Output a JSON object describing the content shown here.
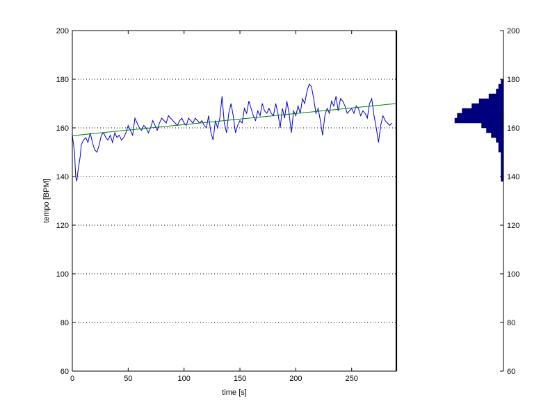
{
  "chart_data": [
    {
      "type": "line",
      "xlabel": "time [s]",
      "ylabel": "tempo [BPM]",
      "xlim": [
        0,
        290
      ],
      "ylim": [
        60,
        200
      ],
      "x_ticks": [
        0,
        50,
        100,
        150,
        200,
        250
      ],
      "y_ticks": [
        60,
        80,
        100,
        120,
        140,
        160,
        180,
        200
      ],
      "grid": "horizontal dotted",
      "series": [
        {
          "color": "#0000cc",
          "x": [
            0,
            2,
            3,
            4,
            5,
            6,
            7,
            8,
            10,
            12,
            14,
            16,
            18,
            20,
            22,
            24,
            26,
            28,
            30,
            32,
            34,
            36,
            38,
            40,
            42,
            44,
            46,
            48,
            50,
            52,
            54,
            56,
            58,
            60,
            62,
            64,
            66,
            68,
            70,
            72,
            74,
            76,
            78,
            80,
            82,
            84,
            86,
            88,
            90,
            92,
            94,
            96,
            98,
            100,
            102,
            104,
            106,
            108,
            110,
            112,
            114,
            116,
            118,
            120,
            122,
            124,
            126,
            128,
            130,
            132,
            134,
            136,
            138,
            140,
            142,
            144,
            146,
            148,
            150,
            152,
            154,
            156,
            158,
            160,
            162,
            164,
            166,
            168,
            170,
            172,
            174,
            176,
            178,
            180,
            182,
            184,
            186,
            188,
            190,
            192,
            194,
            196,
            198,
            200,
            202,
            204,
            206,
            208,
            210,
            212,
            214,
            216,
            218,
            220,
            222,
            224,
            226,
            228,
            230,
            232,
            234,
            236,
            238,
            240,
            242,
            244,
            246,
            248,
            250,
            252,
            254,
            256,
            258,
            260,
            262,
            264,
            266,
            268,
            270,
            272,
            274,
            276,
            278,
            280,
            282,
            284,
            286
          ],
          "y": [
            157,
            150,
            140,
            138,
            142,
            145,
            148,
            153,
            155,
            156,
            154,
            158,
            154,
            151,
            150,
            153,
            157,
            158,
            156,
            155,
            157,
            154,
            158,
            156,
            157,
            155,
            156,
            158,
            161,
            159,
            157,
            164,
            162,
            160,
            159,
            161,
            160,
            158,
            160,
            163,
            161,
            159,
            162,
            164,
            163,
            162,
            165,
            164,
            163,
            162,
            161,
            163,
            164,
            162,
            161,
            164,
            163,
            162,
            164,
            163,
            162,
            163,
            161,
            160,
            165,
            158,
            155,
            163,
            160,
            164,
            173,
            162,
            158,
            166,
            170,
            165,
            158,
            161,
            163,
            162,
            168,
            166,
            171,
            168,
            165,
            163,
            167,
            165,
            170,
            167,
            166,
            168,
            166,
            165,
            170,
            166,
            160,
            168,
            164,
            171,
            166,
            158,
            167,
            165,
            169,
            166,
            172,
            170,
            175,
            178,
            177,
            172,
            166,
            168,
            163,
            157,
            165,
            168,
            166,
            171,
            169,
            173,
            167,
            172,
            171,
            169,
            166,
            167,
            168,
            166,
            169,
            168,
            165,
            167,
            166,
            164,
            170,
            172,
            165,
            160,
            154,
            161,
            165,
            163,
            162,
            161,
            162
          ]
        },
        {
          "color": "#008000",
          "x": [
            0,
            290
          ],
          "y": [
            156.8,
            170
          ]
        }
      ]
    },
    {
      "type": "bar",
      "orientation": "horizontal",
      "color": "#00007f",
      "ylim": [
        60,
        200
      ],
      "y_ticks": [
        60,
        80,
        100,
        120,
        140,
        160,
        180,
        200
      ],
      "bins": [
        139,
        141,
        143,
        145,
        147,
        149,
        151,
        153,
        155,
        157,
        159,
        161,
        163,
        165,
        167,
        169,
        171,
        173,
        175,
        177,
        179
      ],
      "counts": [
        1,
        1,
        1,
        1,
        1,
        1,
        2,
        2,
        3,
        5,
        7,
        9,
        20,
        19,
        17,
        13,
        10,
        6,
        3,
        2,
        1
      ]
    }
  ]
}
